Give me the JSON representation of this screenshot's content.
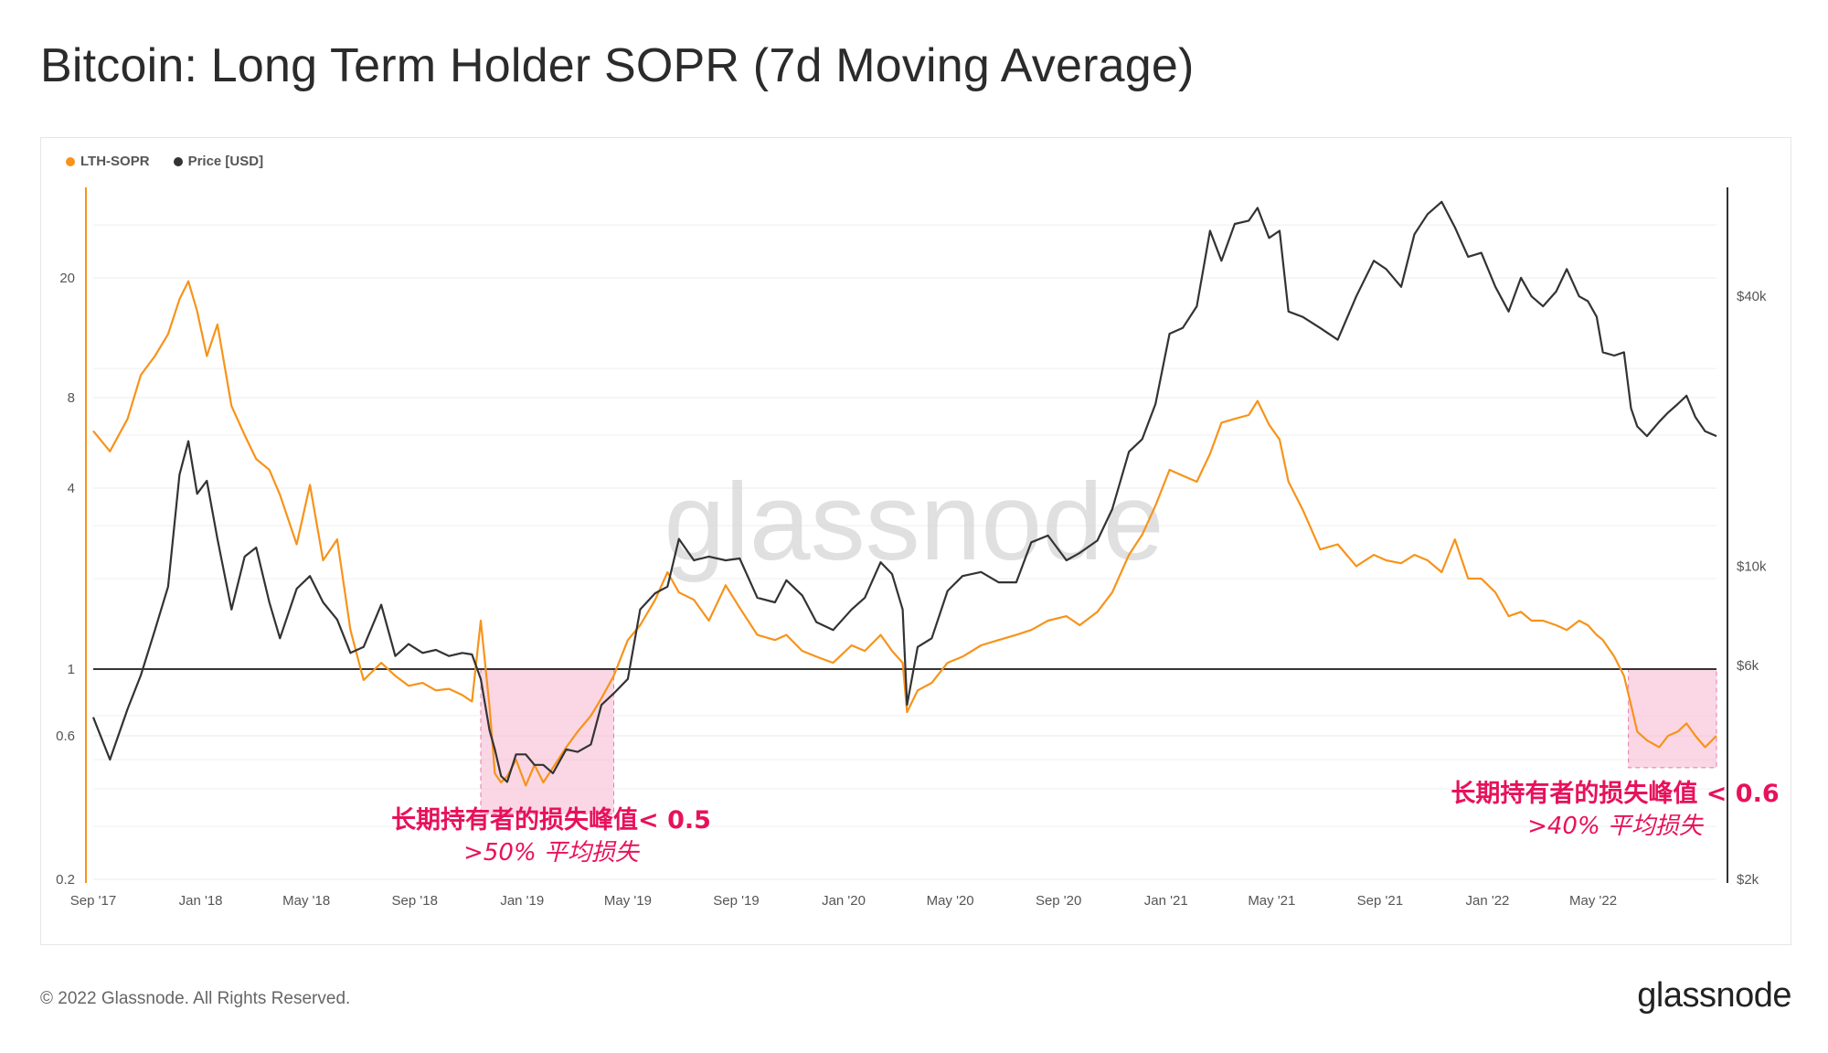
{
  "title": "Bitcoin: Long Term Holder SOPR (7d Moving Average)",
  "footer": {
    "copyright": "© 2022 Glassnode. All Rights Reserved.",
    "brand": "glassnode"
  },
  "watermark": "glassnode",
  "colors": {
    "sopr": "#f7931a",
    "price": "#333333",
    "highlight": "#f7b6cf",
    "annotation": "#e8115b"
  },
  "legend": [
    {
      "label": "LTH-SOPR",
      "color": "#f7931a"
    },
    {
      "label": "Price [USD]",
      "color": "#333333"
    }
  ],
  "annotations": [
    {
      "line1": "长期持有者的损失峰值< 0.5",
      "line2": ">50% 平均损失",
      "x_range": [
        "2018-11-15",
        "2019-04-15"
      ],
      "y_range": [
        0.33,
        1
      ]
    },
    {
      "line1": "长期持有者的损失峰值 < 0.6",
      "line2": ">40% 平均损失",
      "x_range": [
        "2022-06-10",
        "2022-09-18"
      ],
      "y_range": [
        0.47,
        1
      ]
    }
  ],
  "chart_data": {
    "type": "line",
    "title": "Bitcoin: Long Term Holder SOPR (7d Moving Average)",
    "x_ticks": [
      "Sep '17",
      "Jan '18",
      "May '18",
      "Sep '18",
      "Jan '19",
      "May '19",
      "Sep '19",
      "Jan '20",
      "May '20",
      "Sep '20",
      "Jan '21",
      "May '21",
      "Sep '21",
      "Jan '22",
      "May '22"
    ],
    "x_range": [
      "2017-09-01",
      "2022-09-18"
    ],
    "y_left": {
      "scale": "log",
      "ticks": [
        "0.2",
        "0.6",
        "1",
        "4",
        "8",
        "20"
      ],
      "range": [
        0.2,
        40
      ]
    },
    "y_right": {
      "scale": "log",
      "ticks": [
        "$2k",
        "$6k",
        "$10k",
        "$40k"
      ],
      "range": [
        2000,
        70000
      ]
    },
    "reference_line": {
      "axis": "left",
      "value": 1
    },
    "grid": true,
    "legend_position": "top-left",
    "series": [
      {
        "name": "LTH-SOPR",
        "axis": "left",
        "color": "#f7931a",
        "x": [
          "2017-09-01",
          "2017-09-20",
          "2017-10-10",
          "2017-10-25",
          "2017-11-10",
          "2017-11-25",
          "2017-12-08",
          "2017-12-18",
          "2017-12-28",
          "2018-01-08",
          "2018-01-20",
          "2018-02-05",
          "2018-02-20",
          "2018-03-05",
          "2018-03-20",
          "2018-04-01",
          "2018-04-20",
          "2018-05-05",
          "2018-05-20",
          "2018-06-05",
          "2018-06-20",
          "2018-07-05",
          "2018-07-25",
          "2018-08-10",
          "2018-08-25",
          "2018-09-10",
          "2018-09-25",
          "2018-10-10",
          "2018-10-25",
          "2018-11-05",
          "2018-11-15",
          "2018-11-25",
          "2018-12-01",
          "2018-12-08",
          "2018-12-15",
          "2018-12-25",
          "2019-01-05",
          "2019-01-15",
          "2019-01-25",
          "2019-02-05",
          "2019-02-20",
          "2019-03-05",
          "2019-03-20",
          "2019-04-01",
          "2019-04-15",
          "2019-05-01",
          "2019-05-15",
          "2019-06-01",
          "2019-06-15",
          "2019-06-28",
          "2019-07-15",
          "2019-08-01",
          "2019-08-20",
          "2019-09-05",
          "2019-09-25",
          "2019-10-15",
          "2019-10-28",
          "2019-11-15",
          "2019-12-01",
          "2019-12-20",
          "2020-01-10",
          "2020-01-25",
          "2020-02-12",
          "2020-02-25",
          "2020-03-08",
          "2020-03-13",
          "2020-03-25",
          "2020-04-10",
          "2020-04-28",
          "2020-05-15",
          "2020-06-05",
          "2020-06-25",
          "2020-07-15",
          "2020-08-01",
          "2020-08-20",
          "2020-09-10",
          "2020-09-25",
          "2020-10-15",
          "2020-11-01",
          "2020-11-20",
          "2020-12-05",
          "2020-12-20",
          "2021-01-05",
          "2021-01-20",
          "2021-02-05",
          "2021-02-20",
          "2021-03-05",
          "2021-03-20",
          "2021-04-05",
          "2021-04-15",
          "2021-04-28",
          "2021-05-10",
          "2021-05-20",
          "2021-06-05",
          "2021-06-25",
          "2021-07-15",
          "2021-08-05",
          "2021-08-25",
          "2021-09-08",
          "2021-09-25",
          "2021-10-10",
          "2021-10-25",
          "2021-11-10",
          "2021-11-25",
          "2021-12-10",
          "2021-12-25",
          "2022-01-10",
          "2022-01-25",
          "2022-02-08",
          "2022-02-20",
          "2022-03-05",
          "2022-03-20",
          "2022-04-01",
          "2022-04-15",
          "2022-04-25",
          "2022-05-05",
          "2022-05-12",
          "2022-05-25",
          "2022-06-05",
          "2022-06-13",
          "2022-06-20",
          "2022-07-01",
          "2022-07-15",
          "2022-07-25",
          "2022-08-05",
          "2022-08-15",
          "2022-08-25",
          "2022-09-05",
          "2022-09-18"
        ],
        "y": [
          6.2,
          5.3,
          6.8,
          9.5,
          11.0,
          13.0,
          17.0,
          19.5,
          15.5,
          11.0,
          14.0,
          7.5,
          6.0,
          5.0,
          4.6,
          3.8,
          2.6,
          4.1,
          2.3,
          2.7,
          1.35,
          0.92,
          1.05,
          0.95,
          0.88,
          0.9,
          0.85,
          0.86,
          0.82,
          0.78,
          1.45,
          0.75,
          0.45,
          0.42,
          0.44,
          0.5,
          0.41,
          0.48,
          0.42,
          0.47,
          0.55,
          0.62,
          0.7,
          0.8,
          0.95,
          1.25,
          1.4,
          1.7,
          2.1,
          1.8,
          1.7,
          1.45,
          1.9,
          1.6,
          1.3,
          1.25,
          1.3,
          1.15,
          1.1,
          1.05,
          1.2,
          1.15,
          1.3,
          1.15,
          1.05,
          0.72,
          0.85,
          0.9,
          1.05,
          1.1,
          1.2,
          1.25,
          1.3,
          1.35,
          1.45,
          1.5,
          1.4,
          1.55,
          1.8,
          2.4,
          2.8,
          3.5,
          4.6,
          4.4,
          4.2,
          5.2,
          6.6,
          6.8,
          7.0,
          7.8,
          6.5,
          5.8,
          4.2,
          3.4,
          2.5,
          2.6,
          2.2,
          2.4,
          2.3,
          2.25,
          2.4,
          2.3,
          2.1,
          2.7,
          2.0,
          2.0,
          1.8,
          1.5,
          1.55,
          1.45,
          1.45,
          1.4,
          1.35,
          1.45,
          1.4,
          1.3,
          1.25,
          1.1,
          0.95,
          0.76,
          0.62,
          0.58,
          0.55,
          0.6,
          0.62,
          0.66,
          0.6,
          0.55,
          0.6
        ]
      },
      {
        "name": "Price [USD]",
        "axis": "right",
        "color": "#333333",
        "x": [
          "2017-09-01",
          "2017-09-20",
          "2017-10-10",
          "2017-10-25",
          "2017-11-10",
          "2017-11-25",
          "2017-12-08",
          "2017-12-18",
          "2017-12-28",
          "2018-01-08",
          "2018-01-20",
          "2018-02-05",
          "2018-02-20",
          "2018-03-05",
          "2018-03-20",
          "2018-04-01",
          "2018-04-20",
          "2018-05-05",
          "2018-05-20",
          "2018-06-05",
          "2018-06-20",
          "2018-07-05",
          "2018-07-25",
          "2018-08-10",
          "2018-08-25",
          "2018-09-10",
          "2018-09-25",
          "2018-10-10",
          "2018-10-25",
          "2018-11-05",
          "2018-11-15",
          "2018-11-25",
          "2018-12-01",
          "2018-12-08",
          "2018-12-15",
          "2018-12-25",
          "2019-01-05",
          "2019-01-15",
          "2019-01-25",
          "2019-02-05",
          "2019-02-20",
          "2019-03-05",
          "2019-03-20",
          "2019-04-01",
          "2019-04-15",
          "2019-05-01",
          "2019-05-15",
          "2019-06-01",
          "2019-06-15",
          "2019-06-28",
          "2019-07-15",
          "2019-08-01",
          "2019-08-20",
          "2019-09-05",
          "2019-09-25",
          "2019-10-15",
          "2019-10-28",
          "2019-11-15",
          "2019-12-01",
          "2019-12-20",
          "2020-01-10",
          "2020-01-25",
          "2020-02-12",
          "2020-02-25",
          "2020-03-08",
          "2020-03-13",
          "2020-03-25",
          "2020-04-10",
          "2020-04-28",
          "2020-05-15",
          "2020-06-05",
          "2020-06-25",
          "2020-07-15",
          "2020-08-01",
          "2020-08-20",
          "2020-09-10",
          "2020-09-25",
          "2020-10-15",
          "2020-11-01",
          "2020-11-20",
          "2020-12-05",
          "2020-12-20",
          "2021-01-05",
          "2021-01-20",
          "2021-02-05",
          "2021-02-20",
          "2021-03-05",
          "2021-03-20",
          "2021-04-05",
          "2021-04-15",
          "2021-04-28",
          "2021-05-10",
          "2021-05-20",
          "2021-06-05",
          "2021-06-25",
          "2021-07-15",
          "2021-08-05",
          "2021-08-25",
          "2021-09-08",
          "2021-09-25",
          "2021-10-10",
          "2021-10-25",
          "2021-11-10",
          "2021-11-25",
          "2021-12-10",
          "2021-12-25",
          "2022-01-10",
          "2022-01-25",
          "2022-02-08",
          "2022-02-20",
          "2022-03-05",
          "2022-03-20",
          "2022-04-01",
          "2022-04-15",
          "2022-04-25",
          "2022-05-05",
          "2022-05-12",
          "2022-05-25",
          "2022-06-05",
          "2022-06-13",
          "2022-06-20",
          "2022-07-01",
          "2022-07-15",
          "2022-07-25",
          "2022-08-05",
          "2022-08-15",
          "2022-08-25",
          "2022-09-05",
          "2022-09-18"
        ],
        "y": [
          4600,
          3700,
          4800,
          5700,
          7200,
          9000,
          16000,
          19000,
          14500,
          15500,
          11500,
          8000,
          10500,
          11000,
          8300,
          6900,
          8900,
          9500,
          8300,
          7600,
          6400,
          6600,
          8200,
          6300,
          6700,
          6400,
          6500,
          6300,
          6400,
          6350,
          5600,
          4300,
          3900,
          3400,
          3300,
          3800,
          3800,
          3600,
          3600,
          3450,
          3900,
          3850,
          4000,
          4900,
          5200,
          5600,
          8000,
          8700,
          9000,
          11500,
          10300,
          10500,
          10300,
          10400,
          8500,
          8300,
          9300,
          8600,
          7500,
          7200,
          8000,
          8500,
          10200,
          9600,
          8000,
          4900,
          6600,
          6900,
          8800,
          9500,
          9700,
          9200,
          9200,
          11300,
          11700,
          10300,
          10700,
          11400,
          13400,
          18000,
          19200,
          23000,
          33000,
          34000,
          38000,
          56000,
          48000,
          58000,
          59000,
          63000,
          54000,
          56000,
          37000,
          36000,
          34000,
          32000,
          40000,
          48000,
          46000,
          42000,
          55000,
          61000,
          65000,
          57000,
          49000,
          50000,
          42000,
          37000,
          44000,
          40000,
          38000,
          41000,
          46000,
          40000,
          39000,
          36000,
          30000,
          29500,
          30000,
          22500,
          20500,
          19500,
          21000,
          22000,
          23000,
          24000,
          21500,
          20000,
          19500
        ]
      }
    ]
  }
}
